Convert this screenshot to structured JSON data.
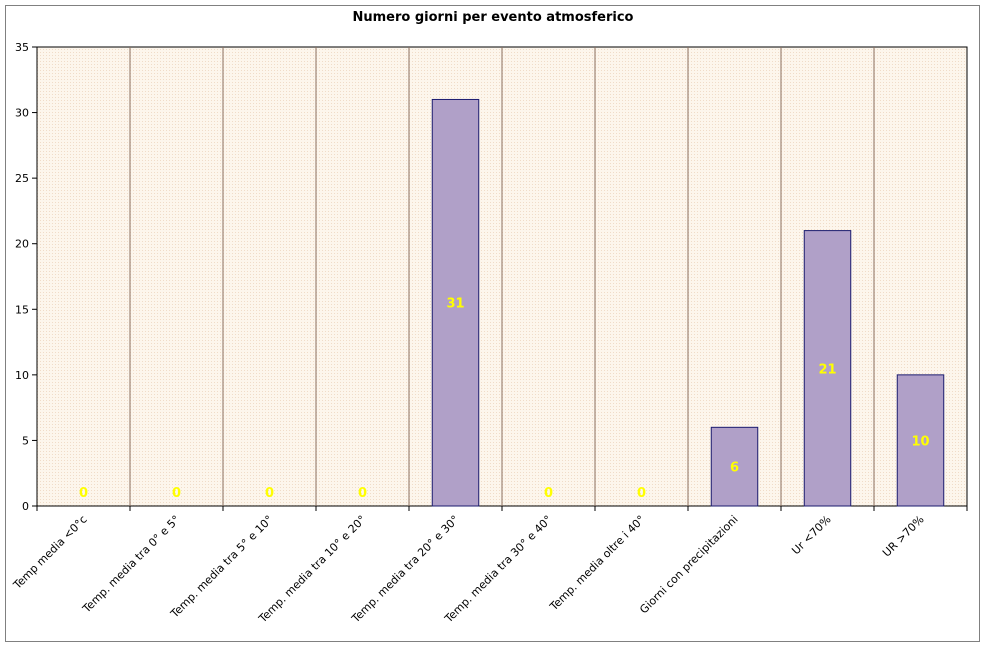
{
  "chart_data": {
    "type": "bar",
    "title": "Numero giorni per evento atmosferico",
    "xlabel": "",
    "ylabel": "",
    "ylim": [
      0,
      35
    ],
    "yticks": [
      0,
      5,
      10,
      15,
      20,
      25,
      30,
      35
    ],
    "categories": [
      "Temp media <0°c",
      "Temp. media tra 0° e 5°",
      "Temp. media tra 5° e 10°",
      "Temp. media tra 10° e 20°",
      "Temp. media tra 20° e 30°",
      "Temp. media tra 30° e 40°",
      "Temp. media oltre i 40°",
      "Giorni con precipitazioni",
      "Ur <70%",
      "UR >70%"
    ],
    "values": [
      0,
      0,
      0,
      0,
      31,
      0,
      0,
      6,
      21,
      10
    ],
    "grid": "vertical category separators",
    "legend": "none",
    "colors": {
      "bar_fill": "#b0a0c8",
      "bar_stroke": "#1a1a6e",
      "plot_bg": "#fdf6ec",
      "data_label": "#ffff00",
      "separator": "#8b7060"
    }
  }
}
